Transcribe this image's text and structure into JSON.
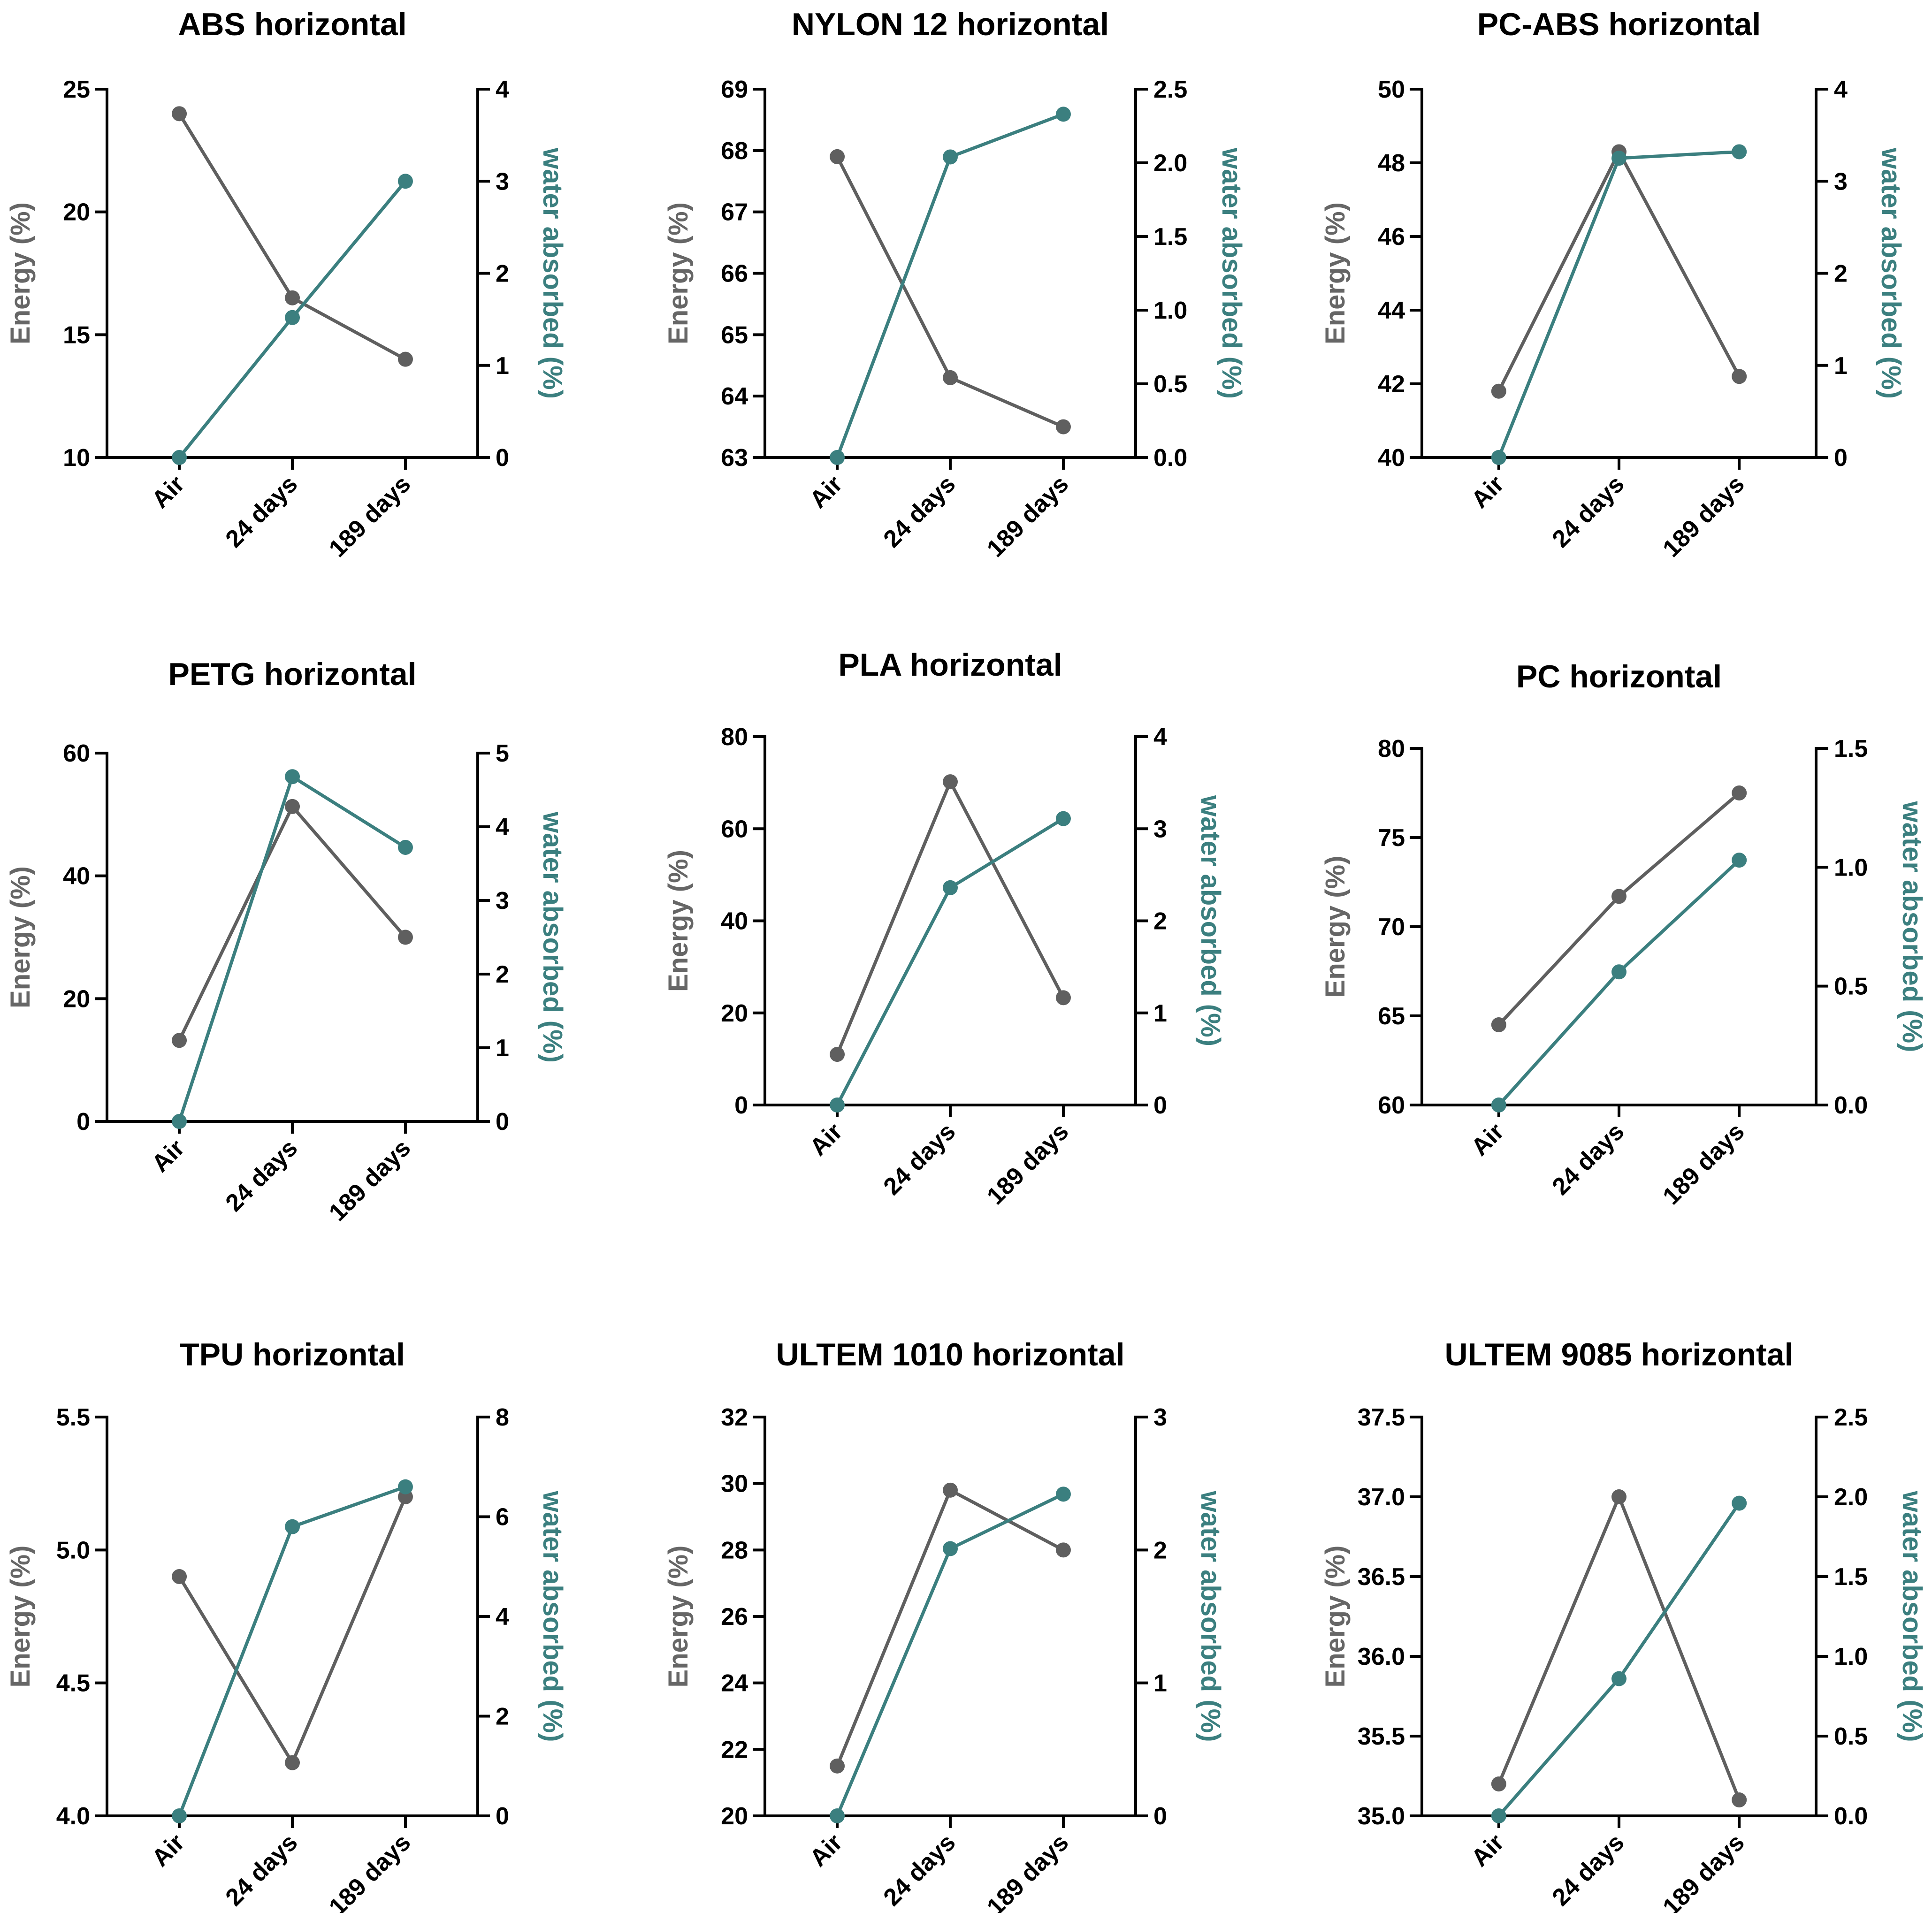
{
  "colors": {
    "energy": "#5f5f5f",
    "water": "#3b7f7f",
    "axis": "#000000",
    "energy_label": "#666666"
  },
  "chart_data": [
    {
      "type": "line",
      "title": "ABS horizontal",
      "categories": [
        "Air",
        "24 days",
        "189 days"
      ],
      "ylabel": "Energy (%)",
      "y2label": "water absorbed (%)",
      "ylim": [
        10,
        25
      ],
      "yticks": [
        10,
        15,
        20,
        25
      ],
      "ytick_labels": [
        "10",
        "15",
        "20",
        "25"
      ],
      "y2lim": [
        0,
        4
      ],
      "y2ticks": [
        0,
        1,
        2,
        3,
        4
      ],
      "y2tick_labels": [
        "0",
        "1",
        "2",
        "3",
        "4"
      ],
      "series": [
        {
          "name": "Energy (%)",
          "axis": "left",
          "values": [
            24.0,
            16.5,
            14.0
          ]
        },
        {
          "name": "water absorbed (%)",
          "axis": "right",
          "values": [
            0.0,
            1.52,
            3.0
          ]
        }
      ]
    },
    {
      "type": "line",
      "title": "NYLON 12 horizontal",
      "categories": [
        "Air",
        "24 days",
        "189 days"
      ],
      "ylabel": "Energy (%)",
      "y2label": "water absorbed (%)",
      "ylim": [
        63,
        69
      ],
      "yticks": [
        63,
        64,
        65,
        66,
        67,
        68,
        69
      ],
      "ytick_labels": [
        "63",
        "64",
        "65",
        "66",
        "67",
        "68",
        "69"
      ],
      "y2lim": [
        0,
        2.5
      ],
      "y2ticks": [
        0,
        0.5,
        1,
        1.5,
        2,
        2.5
      ],
      "y2tick_labels": [
        "0.0",
        "0.5",
        "1.0",
        "1.5",
        "2.0",
        "2.5"
      ],
      "series": [
        {
          "name": "Energy (%)",
          "axis": "left",
          "values": [
            67.9,
            64.3,
            63.5
          ]
        },
        {
          "name": "water absorbed (%)",
          "axis": "right",
          "values": [
            0.0,
            2.04,
            2.33
          ]
        }
      ]
    },
    {
      "type": "line",
      "title": "PC-ABS horizontal",
      "categories": [
        "Air",
        "24 days",
        "189 days"
      ],
      "ylabel": "Energy (%)",
      "y2label": "water absorbed (%)",
      "ylim": [
        40,
        50
      ],
      "yticks": [
        40,
        42,
        44,
        46,
        48,
        50
      ],
      "ytick_labels": [
        "40",
        "42",
        "44",
        "46",
        "48",
        "50"
      ],
      "y2lim": [
        0,
        4
      ],
      "y2ticks": [
        0,
        1,
        2,
        3,
        4
      ],
      "y2tick_labels": [
        "0",
        "1",
        "2",
        "3",
        "4"
      ],
      "series": [
        {
          "name": "Energy (%)",
          "axis": "left",
          "values": [
            41.8,
            48.3,
            42.2
          ]
        },
        {
          "name": "water absorbed (%)",
          "axis": "right",
          "values": [
            0.0,
            3.25,
            3.32
          ]
        }
      ]
    },
    {
      "type": "line",
      "title": "PETG horizontal",
      "categories": [
        "Air",
        "24 days",
        "189 days"
      ],
      "ylabel": "Energy (%)",
      "y2label": "water absorbed (%)",
      "ylim": [
        0,
        60
      ],
      "yticks": [
        0,
        20,
        40,
        60
      ],
      "ytick_labels": [
        "0",
        "20",
        "40",
        "60"
      ],
      "y2lim": [
        0,
        5
      ],
      "y2ticks": [
        0,
        1,
        2,
        3,
        4,
        5
      ],
      "y2tick_labels": [
        "0",
        "1",
        "2",
        "3",
        "4",
        "5"
      ],
      "series": [
        {
          "name": "Energy (%)",
          "axis": "left",
          "values": [
            13.2,
            51.3,
            30.0
          ]
        },
        {
          "name": "water absorbed (%)",
          "axis": "right",
          "values": [
            0.0,
            4.68,
            3.72
          ]
        }
      ]
    },
    {
      "type": "line",
      "title": "PLA horizontal",
      "categories": [
        "Air",
        "24 days",
        "189 days"
      ],
      "ylabel": "Energy (%)",
      "y2label": "water absorbed (%)",
      "ylim": [
        0,
        80
      ],
      "yticks": [
        0,
        20,
        40,
        60,
        80
      ],
      "ytick_labels": [
        "0",
        "20",
        "40",
        "60",
        "80"
      ],
      "y2lim": [
        0,
        4
      ],
      "y2ticks": [
        0,
        1,
        2,
        3,
        4
      ],
      "y2tick_labels": [
        "0",
        "1",
        "2",
        "3",
        "4"
      ],
      "series": [
        {
          "name": "Energy (%)",
          "axis": "left",
          "values": [
            11.0,
            70.2,
            23.3
          ]
        },
        {
          "name": "water absorbed (%)",
          "axis": "right",
          "values": [
            0.0,
            2.36,
            3.11
          ]
        }
      ]
    },
    {
      "type": "line",
      "title": "PC horizontal",
      "categories": [
        "Air",
        "24 days",
        "189 days"
      ],
      "ylabel": "Energy (%)",
      "y2label": "water absorbed (%)",
      "ylim": [
        60,
        80
      ],
      "yticks": [
        60,
        65,
        70,
        75,
        80
      ],
      "ytick_labels": [
        "60",
        "65",
        "70",
        "75",
        "80"
      ],
      "y2lim": [
        0,
        1.5
      ],
      "y2ticks": [
        0,
        0.5,
        1,
        1.5
      ],
      "y2tick_labels": [
        "0.0",
        "0.5",
        "1.0",
        "1.5"
      ],
      "series": [
        {
          "name": "Energy (%)",
          "axis": "left",
          "values": [
            64.5,
            71.7,
            77.5
          ]
        },
        {
          "name": "water absorbed (%)",
          "axis": "right",
          "values": [
            0.0,
            0.56,
            1.03
          ]
        }
      ]
    },
    {
      "type": "line",
      "title": "TPU horizontal",
      "categories": [
        "Air",
        "24 days",
        "189 days"
      ],
      "ylabel": "Energy (%)",
      "y2label": "water absorbed (%)",
      "ylim": [
        4.0,
        5.5
      ],
      "yticks": [
        4.0,
        4.5,
        5.0,
        5.5
      ],
      "ytick_labels": [
        "4.0",
        "4.5",
        "5.0",
        "5.5"
      ],
      "y2lim": [
        0,
        8
      ],
      "y2ticks": [
        0,
        2,
        4,
        6,
        8
      ],
      "y2tick_labels": [
        "0",
        "2",
        "4",
        "6",
        "8"
      ],
      "series": [
        {
          "name": "Energy (%)",
          "axis": "left",
          "values": [
            4.9,
            4.2,
            5.2
          ]
        },
        {
          "name": "water absorbed (%)",
          "axis": "right",
          "values": [
            0.0,
            5.8,
            6.6
          ]
        }
      ]
    },
    {
      "type": "line",
      "title": "ULTEM 1010 horizontal",
      "categories": [
        "Air",
        "24 days",
        "189 days"
      ],
      "ylabel": "Energy (%)",
      "y2label": "water absorbed (%)",
      "ylim": [
        20,
        32
      ],
      "yticks": [
        20,
        22,
        24,
        26,
        28,
        30,
        32
      ],
      "ytick_labels": [
        "20",
        "22",
        "24",
        "26",
        "28",
        "30",
        "32"
      ],
      "y2lim": [
        0,
        3
      ],
      "y2ticks": [
        0,
        1,
        2,
        3
      ],
      "y2tick_labels": [
        "0",
        "1",
        "2",
        "3"
      ],
      "series": [
        {
          "name": "Energy (%)",
          "axis": "left",
          "values": [
            21.5,
            29.8,
            28.0
          ]
        },
        {
          "name": "water absorbed (%)",
          "axis": "right",
          "values": [
            0.0,
            2.01,
            2.42
          ]
        }
      ]
    },
    {
      "type": "line",
      "title": "ULTEM 9085 horizontal",
      "categories": [
        "Air",
        "24 days",
        "189 days"
      ],
      "ylabel": "Energy (%)",
      "y2label": "water absorbed (%)",
      "ylim": [
        35.0,
        37.5
      ],
      "yticks": [
        35.0,
        35.5,
        36.0,
        36.5,
        37.0,
        37.5
      ],
      "ytick_labels": [
        "35.0",
        "35.5",
        "36.0",
        "36.5",
        "37.0",
        "37.5"
      ],
      "y2lim": [
        0,
        2.5
      ],
      "y2ticks": [
        0,
        0.5,
        1,
        1.5,
        2,
        2.5
      ],
      "y2tick_labels": [
        "0.0",
        "0.5",
        "1.0",
        "1.5",
        "2.0",
        "2.5"
      ],
      "series": [
        {
          "name": "Energy (%)",
          "axis": "left",
          "values": [
            35.2,
            37.0,
            35.1
          ]
        },
        {
          "name": "water absorbed (%)",
          "axis": "right",
          "values": [
            0.0,
            0.86,
            1.96
          ]
        }
      ]
    }
  ]
}
